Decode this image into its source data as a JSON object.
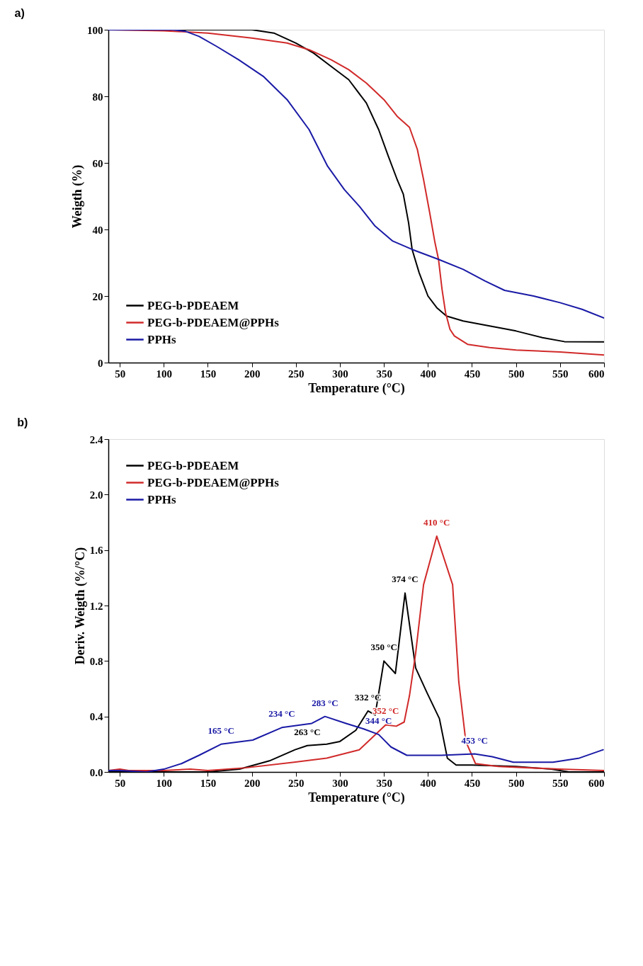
{
  "chart_data": [
    {
      "type": "line",
      "title": "a)",
      "xlabel": "Temperature (°C)",
      "ylabel": "Weigth (%)",
      "xlim": [
        37,
        600
      ],
      "xticks": [
        50,
        100,
        150,
        200,
        250,
        300,
        350,
        400,
        450,
        500,
        550,
        600
      ],
      "ylim": [
        0,
        100
      ],
      "yticks": [
        0,
        20,
        40,
        60,
        80,
        100
      ],
      "grid": false,
      "legend": "bottom left",
      "line_style": "solid",
      "series": [
        {
          "name": "PEG-b-PDEAEM",
          "color": "#000000",
          "x": [
            37,
            200,
            225,
            250,
            270,
            290,
            310,
            330,
            344,
            355,
            365,
            372,
            378,
            382,
            390,
            400,
            410,
            421,
            440,
            470,
            500,
            530,
            555,
            600
          ],
          "values": [
            100,
            100,
            99,
            96,
            93,
            89,
            85,
            78,
            70,
            62,
            55,
            50.6,
            42,
            34,
            27,
            20,
            16.5,
            14,
            12.5,
            11,
            9.5,
            7.5,
            6.3,
            6.2
          ]
        },
        {
          "name": "PEG-b-PDEAEM@PPHs",
          "color": "#d12a2a",
          "x": [
            37,
            100,
            150,
            200,
            240,
            265,
            290,
            310,
            330,
            350,
            365,
            379,
            388,
            395,
            402,
            408,
            412,
            416,
            420,
            425,
            430,
            445,
            470,
            500,
            550,
            600
          ],
          "values": [
            100,
            99.7,
            99,
            97.5,
            96,
            94,
            91,
            88,
            84,
            79,
            74,
            70.7,
            64,
            55,
            45,
            36,
            31,
            22,
            15,
            10,
            8,
            5.5,
            4.5,
            3.8,
            3.2,
            2.3
          ]
        },
        {
          "name": "PPHs",
          "color": "#1a1aa6",
          "x": [
            37,
            110,
            125,
            140,
            160,
            185,
            213,
            240,
            265,
            286,
            305,
            322,
            340,
            360,
            382,
            412,
            440,
            465,
            487,
            520,
            550,
            575,
            600
          ],
          "values": [
            100,
            100,
            99.5,
            98,
            95,
            91,
            86,
            79,
            70,
            59,
            52,
            47,
            41,
            36.5,
            34,
            31,
            28,
            24.5,
            21.7,
            20,
            18,
            16,
            13.4
          ]
        }
      ]
    },
    {
      "type": "line",
      "title": "b)",
      "xlabel": "Temperature (°C)",
      "ylabel": "Deriv. Weigth (%/°C)",
      "xlim": [
        37,
        600
      ],
      "xticks": [
        50,
        100,
        150,
        200,
        250,
        300,
        350,
        400,
        450,
        500,
        550,
        600
      ],
      "ylim": [
        0,
        2.4
      ],
      "yticks": [
        {
          "value": 0,
          "label": "0.0"
        },
        0.4,
        0.8,
        1.2,
        1.6,
        {
          "value": 2,
          "label": "2.0"
        },
        {
          "value": 2.4,
          "label": "2.4"
        }
      ],
      "grid": false,
      "legend": "top left",
      "line_style": "solid",
      "series": [
        {
          "name": "PEG-b-PDEAEM",
          "color": "#000000",
          "x": [
            37,
            100,
            150,
            186,
            220,
            249,
            263,
            285,
            300,
            318,
            332,
            340,
            350,
            363,
            374,
            386,
            399,
            413,
            422,
            432,
            450,
            500,
            540,
            560,
            600
          ],
          "values": [
            0,
            0,
            0,
            0.02,
            0.08,
            0.16,
            0.19,
            0.2,
            0.22,
            0.3,
            0.44,
            0.41,
            0.8,
            0.71,
            1.29,
            0.75,
            0.57,
            0.385,
            0.1,
            0.05,
            0.05,
            0.04,
            0.02,
            0,
            0
          ]
        },
        {
          "name": "PEG-b-PDEAEM@PPHs",
          "color": "#d12a2a",
          "x": [
            37,
            50,
            60,
            100,
            130,
            150,
            193,
            248,
            285,
            322,
            352,
            364,
            373,
            379,
            386,
            395,
            410,
            428,
            435,
            443,
            454,
            480,
            550,
            600
          ],
          "values": [
            0.01,
            0.02,
            0.01,
            0.01,
            0.02,
            0.01,
            0.03,
            0.07,
            0.1,
            0.16,
            0.34,
            0.33,
            0.36,
            0.55,
            0.855,
            1.35,
            1.7,
            1.35,
            0.65,
            0.22,
            0.06,
            0.04,
            0.02,
            0.01
          ]
        },
        {
          "name": "PPHs",
          "color": "#1a1aa6",
          "x": [
            37,
            50,
            80,
            100,
            120,
            140,
            165,
            201,
            234,
            268,
            283,
            307,
            327,
            344,
            358,
            376,
            415,
            453,
            473,
            497,
            542,
            572,
            599
          ],
          "values": [
            0.01,
            0.01,
            0,
            0.02,
            0.06,
            0.12,
            0.2,
            0.23,
            0.32,
            0.35,
            0.4,
            0.35,
            0.31,
            0.27,
            0.18,
            0.12,
            0.12,
            0.13,
            0.11,
            0.07,
            0.07,
            0.1,
            0.16
          ]
        }
      ],
      "annotations": [
        {
          "text": "263 °C",
          "x": 263,
          "y": 0.19
        },
        {
          "text": "332 °C",
          "x": 332,
          "y": 0.44
        },
        {
          "text": "350 °C",
          "x": 350,
          "y": 0.8
        },
        {
          "text": "374 °C",
          "x": 374,
          "y": 1.29
        },
        {
          "text": "352 °C",
          "x": 352,
          "y": 0.34
        },
        {
          "text": "410 °C",
          "x": 410,
          "y": 1.7
        },
        {
          "text": "165 °C",
          "x": 165,
          "y": 0.2
        },
        {
          "text": "234 °C",
          "x": 234,
          "y": 0.32
        },
        {
          "text": "283 °C",
          "x": 283,
          "y": 0.4
        },
        {
          "text": "344 °C",
          "x": 344,
          "y": 0.27
        },
        {
          "text": "453 °C",
          "x": 453,
          "y": 0.13
        }
      ]
    }
  ]
}
